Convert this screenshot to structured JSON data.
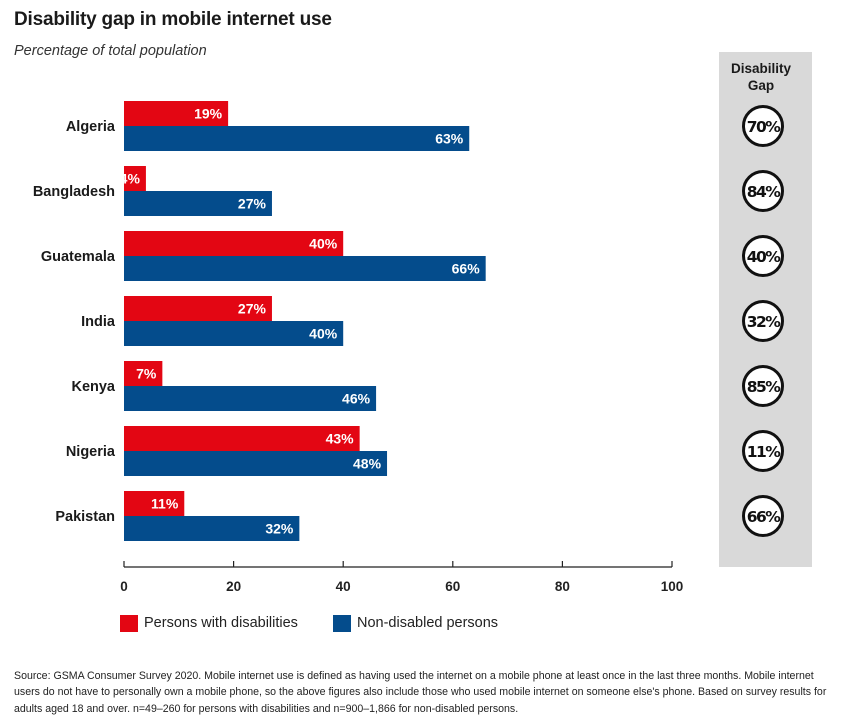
{
  "chart_data": {
    "type": "bar",
    "orientation": "horizontal",
    "title": "Disability gap in mobile internet use",
    "subtitle": "Percentage of total population",
    "categories": [
      "Algeria",
      "Bangladesh",
      "Guatemala",
      "India",
      "Kenya",
      "Nigeria",
      "Pakistan"
    ],
    "series": [
      {
        "name": "Persons with disabilities",
        "color": "#e30613",
        "values": [
          19,
          4,
          40,
          27,
          7,
          43,
          11
        ]
      },
      {
        "name": "Non-disabled persons",
        "color": "#044c8c",
        "values": [
          63,
          27,
          66,
          40,
          46,
          48,
          32
        ]
      }
    ],
    "xlim": [
      0,
      100
    ],
    "xticks": [
      0,
      20,
      40,
      60,
      80,
      100
    ],
    "value_suffix": "%",
    "grid": false,
    "legend_position": "bottom-left",
    "gap_panel": {
      "header": "Disability\nGap",
      "values": [
        "70%",
        "84%",
        "40%",
        "32%",
        "85%",
        "11%",
        "66%"
      ]
    }
  },
  "source_note": "Source: GSMA Consumer Survey 2020. Mobile internet use is defined as having used the internet on a mobile phone at least once in the last three months. Mobile internet users do not have to personally own a mobile phone, so the above figures also include those who used mobile internet on someone else's phone. Based on survey results for adults aged 18 and over. n=49–260 for persons with disabilities and n=900–1,866 for non-disabled persons."
}
